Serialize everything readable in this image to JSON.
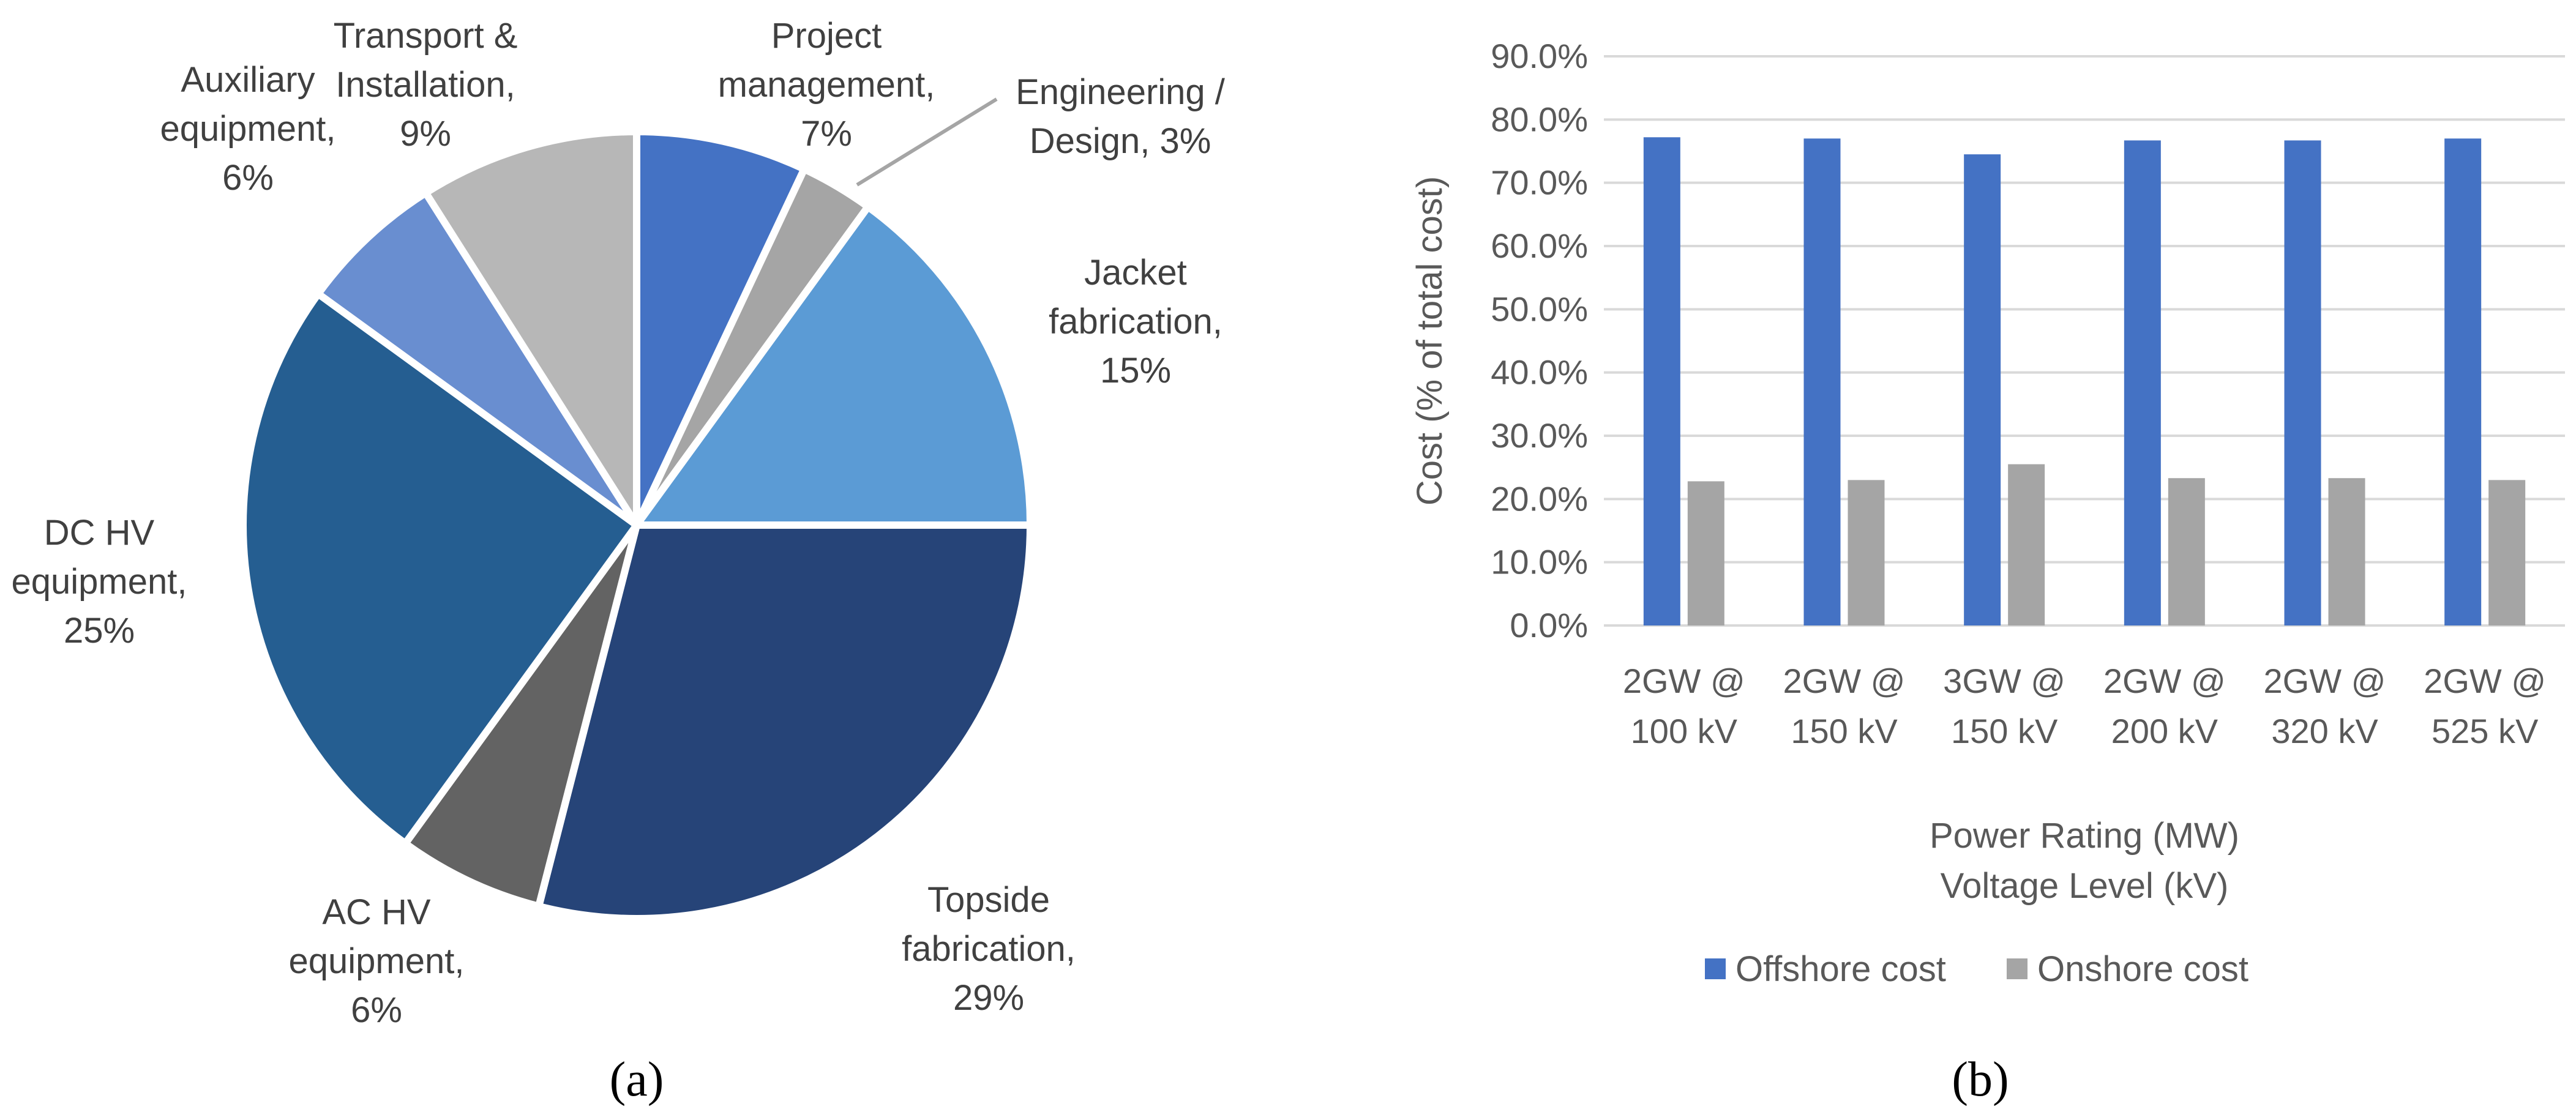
{
  "chart_data": [
    {
      "type": "pie",
      "panel_label": "a",
      "slices": [
        {
          "label": [
            "Project",
            "management,",
            "7%"
          ],
          "value": 7,
          "color": "#4472C4"
        },
        {
          "label": [
            "Engineering /",
            "Design, 3%"
          ],
          "value": 3,
          "color": "#A5A5A5"
        },
        {
          "label": [
            "Jacket",
            "fabrication,",
            "15%"
          ],
          "value": 15,
          "color": "#5B9BD5"
        },
        {
          "label": [
            "Topside",
            "fabrication,",
            "29%"
          ],
          "value": 29,
          "color": "#264478"
        },
        {
          "label": [
            "AC HV",
            "equipment,",
            "6%"
          ],
          "value": 6,
          "color": "#636363"
        },
        {
          "label": [
            "DC HV",
            "equipment,",
            "25%"
          ],
          "value": 25,
          "color": "#255E91"
        },
        {
          "label": [
            "Auxiliary",
            "equipment,",
            "6%"
          ],
          "value": 6,
          "color": "#698ED0"
        },
        {
          "label": [
            "Transport &",
            "Installation,",
            "9%"
          ],
          "value": 9,
          "color": "#B7B7B7"
        }
      ]
    },
    {
      "type": "bar",
      "panel_label": "b",
      "categories": [
        [
          "2GW @",
          "100 kV"
        ],
        [
          "2GW @",
          "150 kV"
        ],
        [
          "3GW @",
          "150 kV"
        ],
        [
          "2GW @",
          "200 kV"
        ],
        [
          "2GW @",
          "320 kV"
        ],
        [
          "2GW @",
          "525 kV"
        ]
      ],
      "series": [
        {
          "name": "Offshore cost",
          "color": "#4472C4",
          "values": [
            77.2,
            77.0,
            74.5,
            76.7,
            76.7,
            77.0
          ]
        },
        {
          "name": "Onshore cost",
          "color": "#A5A5A5",
          "values": [
            22.8,
            23.0,
            25.5,
            23.3,
            23.3,
            23.0
          ]
        }
      ],
      "ylim": [
        0,
        90
      ],
      "yticks": [
        "0.0%",
        "10.0%",
        "20.0%",
        "30.0%",
        "40.0%",
        "50.0%",
        "60.0%",
        "70.0%",
        "80.0%",
        "90.0%"
      ],
      "ylabel": "Cost (% of total cost)",
      "xlabel": [
        "Power Rating (MW)",
        "Voltage Level (kV)"
      ],
      "grid": true,
      "legend_position": "bottom"
    }
  ]
}
